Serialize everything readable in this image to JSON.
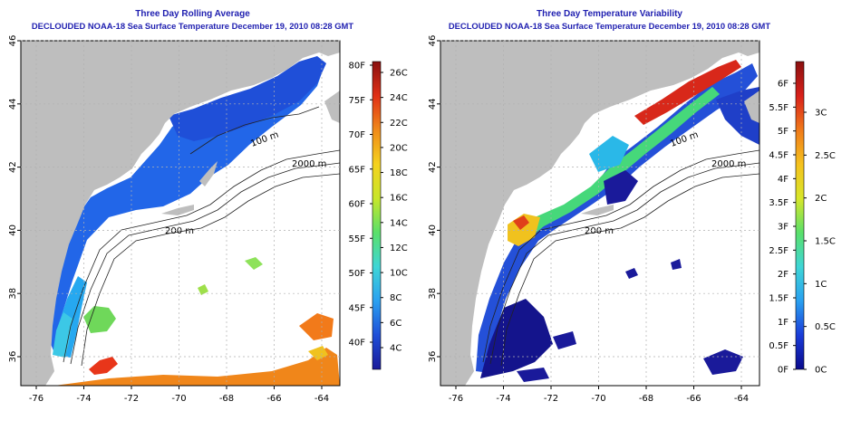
{
  "left_panel": {
    "title_line1": "Three Day Rolling Average",
    "title_line2": "DECLOUDED NOAA-18 Sea Surface Temperature December 19, 2010 08:28 GMT",
    "colorbar_left_labels": [
      "80F",
      "75F",
      "70F",
      "65F",
      "60F",
      "55F",
      "50F",
      "45F",
      "40F"
    ],
    "colorbar_right_labels": [
      "26C",
      "24C",
      "22C",
      "20C",
      "18C",
      "16C",
      "14C",
      "12C",
      "10C",
      "8C",
      "6C",
      "4C"
    ],
    "colorbar_stops": [
      "#1a1a9a",
      "#1f4fd8",
      "#2aa0f0",
      "#3fd6d6",
      "#5ae06a",
      "#c8e62a",
      "#f5d21e",
      "#f08a1a",
      "#e03016",
      "#8a1010"
    ]
  },
  "right_panel": {
    "title_line1": "Three Day Temperature Variability",
    "title_line2": "DECLOUDED NOAA-18 Sea Surface Temperature December 19, 2010 08:28 GMT",
    "colorbar_left_labels": [
      "6F",
      "5.5F",
      "5F",
      "4.5F",
      "4F",
      "3.5F",
      "3F",
      "2.5F",
      "2F",
      "1.5F",
      "1F",
      "0.5F",
      "0F"
    ],
    "colorbar_right_labels": [
      "3C",
      "2.5C",
      "2C",
      "1.5C",
      "1C",
      "0.5C",
      "0C"
    ],
    "colorbar_stops": [
      "#0a0a8c",
      "#1a3cd8",
      "#2aa0f0",
      "#3fd6d6",
      "#5ae06a",
      "#d8e62a",
      "#f5c21e",
      "#f07a1a",
      "#d8201a",
      "#8a1010"
    ]
  },
  "x_ticks": [
    "-76",
    "-74",
    "-72",
    "-70",
    "-68",
    "-66",
    "-64"
  ],
  "y_ticks": [
    "36",
    "38",
    "40",
    "42",
    "44",
    "46"
  ],
  "contour_labels": [
    "100 m",
    "200 m",
    "2000 m"
  ],
  "colors": {
    "title": "#1f1fb0",
    "land": "#bebebe",
    "water": "#ffffff"
  }
}
